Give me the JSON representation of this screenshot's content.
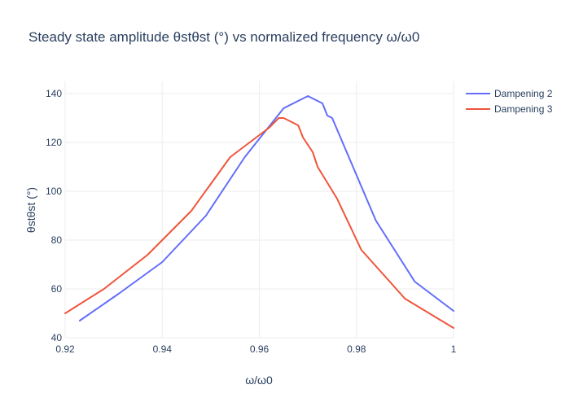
{
  "chart_data": {
    "type": "line",
    "title": "Steady state amplitude θstθst (°) vs normalized frequency ω/ω0",
    "xlabel": "ω/ω0",
    "ylabel": "θstθst (°)",
    "xlim": [
      0.92,
      1.0
    ],
    "ylim": [
      40,
      145
    ],
    "xticks": [
      0.92,
      0.94,
      0.96,
      0.98,
      1.0
    ],
    "xtick_labels": [
      "0.92",
      "0.94",
      "0.96",
      "0.98",
      "1"
    ],
    "yticks": [
      40,
      60,
      80,
      100,
      120,
      140
    ],
    "ytick_labels": [
      "40",
      "60",
      "80",
      "100",
      "120",
      "140"
    ],
    "grid": true,
    "legend_position": "top-right",
    "series": [
      {
        "name": "Dampening 2",
        "color": "#636efa",
        "x": [
          0.923,
          0.931,
          0.94,
          0.949,
          0.957,
          0.965,
          0.97,
          0.973,
          0.974,
          0.975,
          0.984,
          0.992,
          1.0
        ],
        "y": [
          47,
          58,
          71,
          90,
          114,
          134,
          139,
          136,
          131,
          130,
          88,
          63,
          51
        ]
      },
      {
        "name": "Dampening 3",
        "color": "#EF553B",
        "x": [
          0.92,
          0.928,
          0.937,
          0.946,
          0.954,
          0.962,
          0.964,
          0.965,
          0.968,
          0.969,
          0.971,
          0.972,
          0.976,
          0.981,
          0.99,
          1.0
        ],
        "y": [
          50,
          60,
          74,
          92,
          114,
          126,
          130,
          130,
          127,
          122,
          116,
          110,
          97,
          76,
          56,
          44
        ]
      }
    ]
  }
}
